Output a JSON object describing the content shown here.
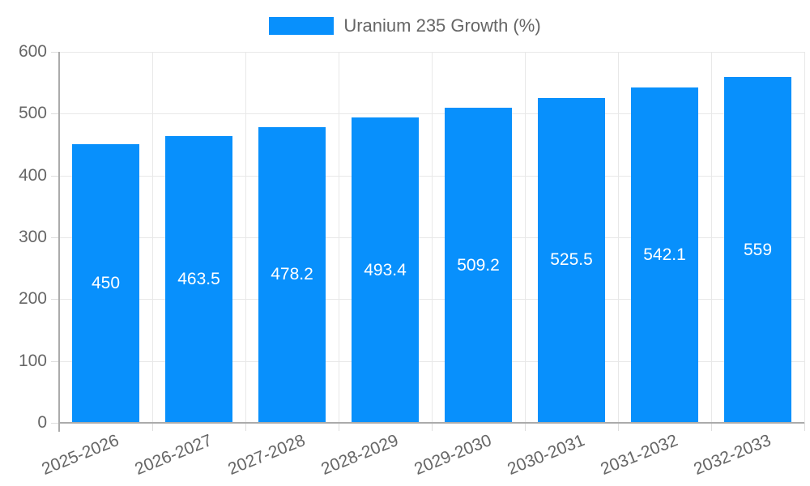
{
  "legend": {
    "label": "Uranium 235 Growth (%)"
  },
  "chart_data": {
    "type": "bar",
    "title": "",
    "xlabel": "",
    "ylabel": "",
    "series_name": "Uranium 235 Growth (%)",
    "categories": [
      "2025-2026",
      "2026-2027",
      "2027-2028",
      "2028-2029",
      "2029-2030",
      "2030-2031",
      "2031-2032",
      "2032-2033"
    ],
    "values": [
      450,
      463.5,
      478.2,
      493.4,
      509.2,
      525.5,
      542.1,
      559
    ],
    "value_labels": [
      "450",
      "463.5",
      "478.2",
      "493.4",
      "509.2",
      "525.5",
      "542.1",
      "559"
    ],
    "ylim": [
      0,
      600
    ],
    "yticks": [
      0,
      100,
      200,
      300,
      400,
      500,
      600
    ],
    "grid": true,
    "legend_position": "top",
    "colors": {
      "bar": "#0890FC",
      "bar_label": "#FFFFFF",
      "axis_text": "#666666",
      "axis_line": "#ABABAB",
      "gridline": "#E8E8E8",
      "tick": "#DDDDDD"
    }
  }
}
